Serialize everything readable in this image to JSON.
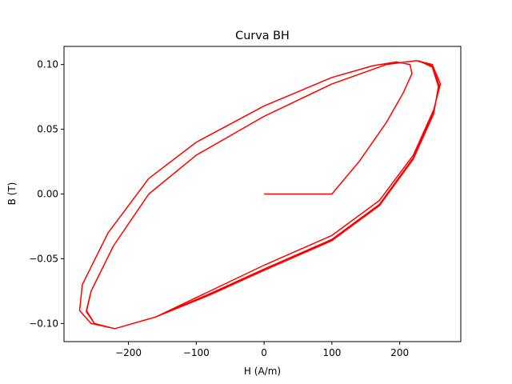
{
  "chart_data": {
    "type": "line",
    "title": "Curva BH",
    "xlabel": "H (A/m)",
    "ylabel": "B (T)",
    "xlim": [
      -295,
      290
    ],
    "ylim": [
      -0.114,
      0.114
    ],
    "xticks": [
      -200,
      -100,
      0,
      100,
      200
    ],
    "xtick_labels": [
      "−200",
      "−100",
      "0",
      "100",
      "200"
    ],
    "yticks": [
      -0.1,
      -0.05,
      0.0,
      0.05,
      0.1
    ],
    "ytick_labels": [
      "−0.10",
      "−0.05",
      "0.00",
      "0.05",
      "0.10"
    ],
    "grid": false,
    "color": "#ff0000",
    "series": [
      {
        "points": [
          [
            0,
            0
          ],
          [
            100,
            0
          ],
          [
            140,
            0.025
          ],
          [
            180,
            0.055
          ],
          [
            205,
            0.078
          ],
          [
            218,
            0.093
          ],
          [
            215,
            0.1
          ],
          [
            195,
            0.102
          ],
          [
            160,
            0.099
          ],
          [
            100,
            0.09
          ],
          [
            0,
            0.068
          ],
          [
            -100,
            0.04
          ],
          [
            -170,
            0.012
          ],
          [
            -230,
            -0.03
          ],
          [
            -268,
            -0.07
          ],
          [
            -272,
            -0.09
          ],
          [
            -255,
            -0.1
          ],
          [
            -220,
            -0.104
          ],
          [
            -160,
            -0.095
          ],
          [
            -80,
            -0.075
          ],
          [
            0,
            -0.055
          ],
          [
            100,
            -0.032
          ],
          [
            170,
            -0.005
          ],
          [
            220,
            0.03
          ],
          [
            250,
            0.065
          ],
          [
            260,
            0.085
          ],
          [
            248,
            0.1
          ],
          [
            225,
            0.103
          ],
          [
            180,
            0.1
          ],
          [
            100,
            0.085
          ],
          [
            0,
            0.06
          ],
          [
            -100,
            0.03
          ],
          [
            -170,
            0.0
          ],
          [
            -222,
            -0.04
          ],
          [
            -255,
            -0.075
          ],
          [
            -262,
            -0.09
          ],
          [
            -250,
            -0.1
          ],
          [
            -220,
            -0.104
          ],
          [
            -160,
            -0.095
          ],
          [
            -80,
            -0.077
          ],
          [
            0,
            -0.058
          ],
          [
            100,
            -0.035
          ],
          [
            170,
            -0.008
          ],
          [
            220,
            0.028
          ],
          [
            250,
            0.063
          ],
          [
            258,
            0.084
          ],
          [
            248,
            0.099
          ],
          [
            225,
            0.103
          ],
          [
            180,
            0.1
          ],
          [
            100,
            0.085
          ],
          [
            0,
            0.06
          ],
          [
            -100,
            0.03
          ],
          [
            -170,
            0.0
          ],
          [
            -222,
            -0.04
          ],
          [
            -255,
            -0.075
          ],
          [
            -262,
            -0.091
          ],
          [
            -250,
            -0.1
          ],
          [
            -220,
            -0.104
          ],
          [
            -160,
            -0.095
          ],
          [
            -80,
            -0.078
          ],
          [
            0,
            -0.059
          ],
          [
            100,
            -0.036
          ],
          [
            170,
            -0.009
          ],
          [
            220,
            0.027
          ],
          [
            250,
            0.062
          ],
          [
            257,
            0.083
          ],
          [
            248,
            0.098
          ],
          [
            228,
            0.103
          ]
        ]
      }
    ]
  }
}
